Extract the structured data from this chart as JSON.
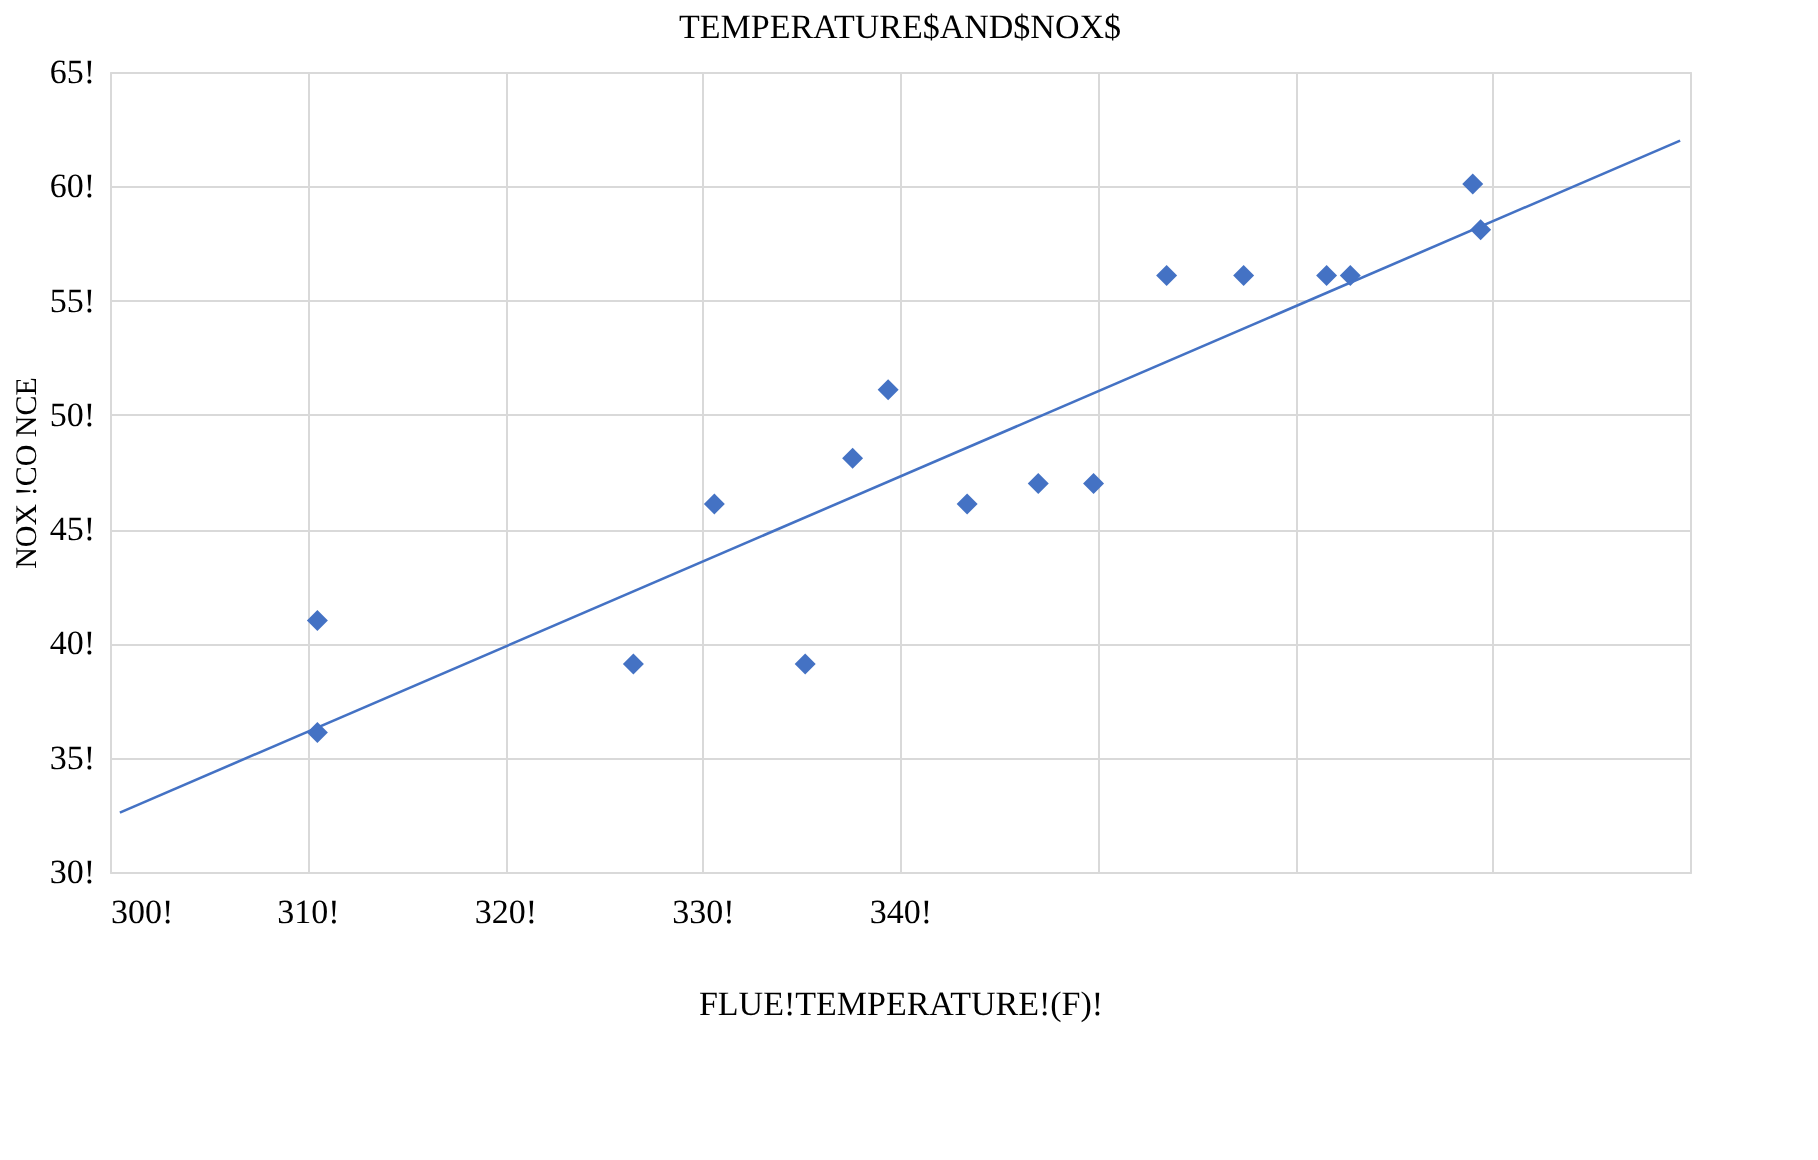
{
  "chart_data": {
    "type": "scatter",
    "title": "TEMPERATURE$AND$NOX$",
    "xlabel": "FLUE!TEMPERATURE!(F)!",
    "ylabel": "NOX !CO NCE",
    "x": [
      310.5,
      310.5,
      326.5,
      330.6,
      335.2,
      337.6,
      339.4,
      343.4,
      347.0,
      349.8,
      353.5,
      357.4,
      361.6,
      362.8,
      369.0,
      369.4
    ],
    "series": [
      {
        "type": "scatter",
        "color": "#4472c4",
        "marker": "diamond",
        "values": [
          41.0,
          36.1,
          39.1,
          46.1,
          39.1,
          48.1,
          51.1,
          46.1,
          47.0,
          47.0,
          56.1,
          56.1,
          56.1,
          56.1,
          60.1,
          58.1
        ]
      },
      {
        "type": "line",
        "color": "#4472c4",
        "marker": "none",
        "line_style": "solid",
        "x": [
          300.5,
          379.5
        ],
        "values": [
          32.6,
          62.0
        ]
      }
    ],
    "xlim": [
      300,
      380
    ],
    "xticks": [
      {
        "value": 300,
        "label": "300!"
      },
      {
        "value": 310,
        "label": "310!"
      },
      {
        "value": 320,
        "label": "320!"
      },
      {
        "value": 330,
        "label": "330!"
      },
      {
        "value": 340,
        "label": "340!"
      },
      {
        "value": 350,
        "label": null
      },
      {
        "value": 360,
        "label": null
      },
      {
        "value": 370,
        "label": null
      },
      {
        "value": 380,
        "label": null
      }
    ],
    "ylim": [
      30,
      65
    ],
    "yticks": [
      {
        "value": 30,
        "label": "30!"
      },
      {
        "value": 35,
        "label": "35!"
      },
      {
        "value": 40,
        "label": "40!"
      },
      {
        "value": 45,
        "label": "45!"
      },
      {
        "value": 50,
        "label": "50!"
      },
      {
        "value": 55,
        "label": "55!"
      },
      {
        "value": 60,
        "label": "60!"
      },
      {
        "value": 65,
        "label": "65!"
      }
    ],
    "grid": true,
    "legend": false
  }
}
